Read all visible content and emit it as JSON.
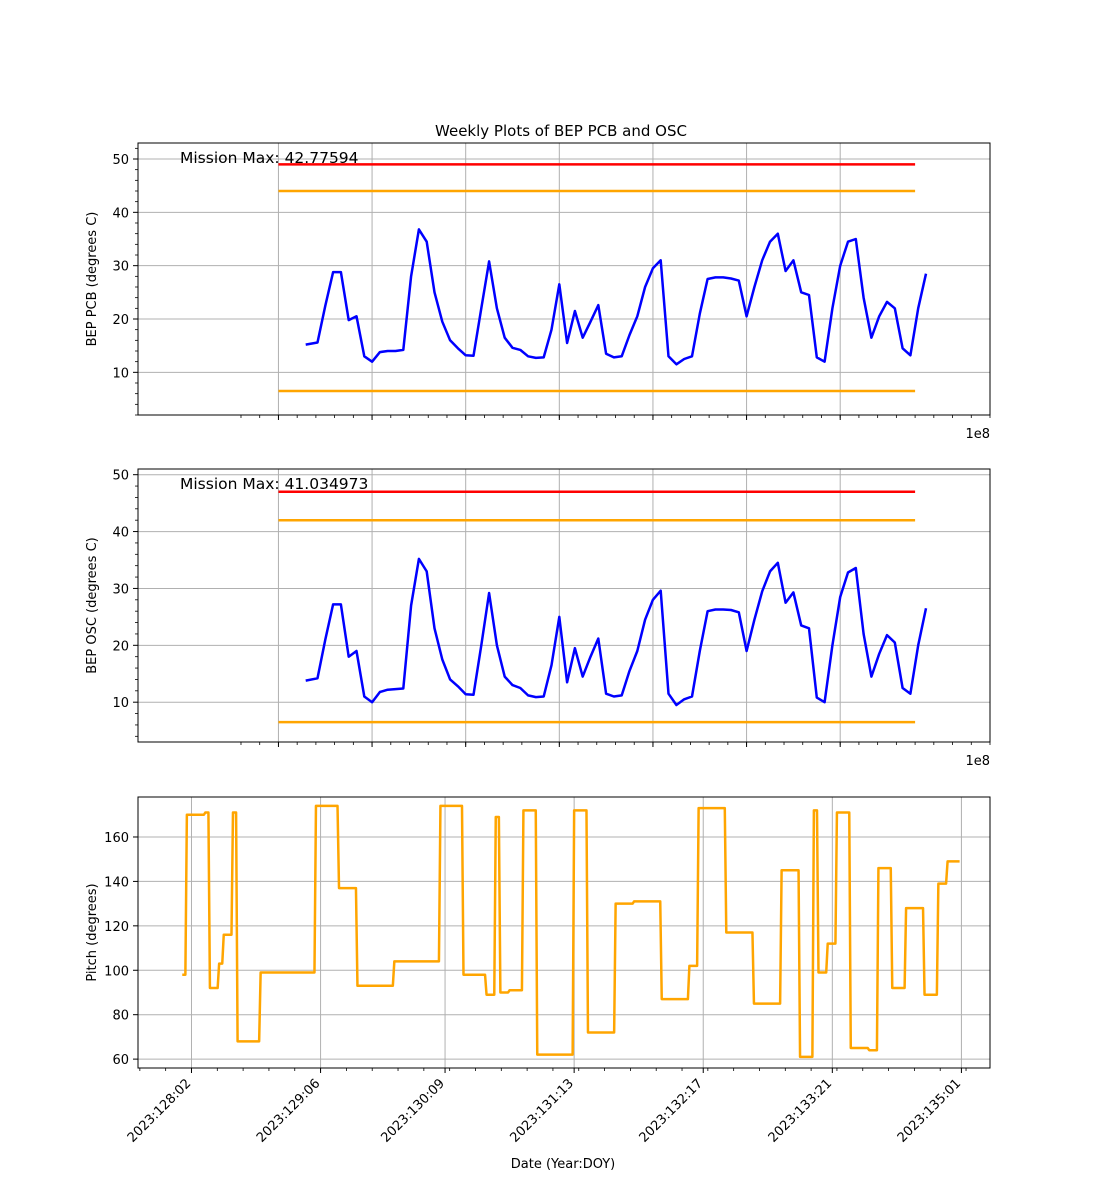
{
  "figure_title": "Weekly Plots of BEP PCB and OSC",
  "colors": {
    "data": "#0000ff",
    "red_limit": "#ff0000",
    "yellow_limit": "#ffa500",
    "pitch": "#ffa500",
    "grid": "#b0b0b0"
  },
  "chart_data": [
    {
      "type": "line",
      "ylabel": "BEP PCB (degrees C)",
      "xlabel": "",
      "offset_label": "1e8",
      "annotation": "Mission Max: 42.77594",
      "ylim": [
        2,
        53
      ],
      "yticks": [
        10,
        20,
        30,
        40,
        50
      ],
      "grid": true,
      "limits": [
        {
          "name": "red-high",
          "value": 49,
          "color": "#ff0000"
        },
        {
          "name": "yellow-high",
          "value": 44,
          "color": "#ffa500"
        },
        {
          "name": "yellow-low",
          "value": 6.5,
          "color": "#ffa500"
        }
      ],
      "series": [
        {
          "color": "#0000ff",
          "x": [
            "2023:128:07",
            "2023:128:10",
            "2023:128:12",
            "2023:128:14",
            "2023:128:16",
            "2023:128:18",
            "2023:128:20",
            "2023:128:22",
            "2023:129:00",
            "2023:129:02",
            "2023:129:04",
            "2023:129:06",
            "2023:129:08",
            "2023:129:10",
            "2023:129:12",
            "2023:129:14",
            "2023:129:16",
            "2023:129:18",
            "2023:129:20",
            "2023:129:22",
            "2023:130:00",
            "2023:130:02",
            "2023:130:04",
            "2023:130:06",
            "2023:130:08",
            "2023:130:10",
            "2023:130:12",
            "2023:130:14",
            "2023:130:16",
            "2023:130:18",
            "2023:130:20",
            "2023:130:22",
            "2023:131:00",
            "2023:131:02",
            "2023:131:04",
            "2023:131:06",
            "2023:131:08",
            "2023:131:10",
            "2023:131:12",
            "2023:131:14",
            "2023:131:16",
            "2023:131:18",
            "2023:131:20",
            "2023:131:22",
            "2023:132:00",
            "2023:132:02",
            "2023:132:04",
            "2023:132:06",
            "2023:132:08",
            "2023:132:10",
            "2023:132:12",
            "2023:132:14",
            "2023:132:16",
            "2023:132:18",
            "2023:132:20",
            "2023:132:22",
            "2023:133:00",
            "2023:133:02",
            "2023:133:04",
            "2023:133:06",
            "2023:133:08",
            "2023:133:10",
            "2023:133:12",
            "2023:133:14",
            "2023:133:16",
            "2023:133:18",
            "2023:133:20",
            "2023:133:22",
            "2023:134:00",
            "2023:134:02",
            "2023:134:04",
            "2023:134:06",
            "2023:134:08",
            "2023:134:10",
            "2023:134:12",
            "2023:134:14",
            "2023:134:16",
            "2023:134:18",
            "2023:134:20",
            "2023:134:22"
          ],
          "y": [
            15.2,
            15.6,
            22.5,
            28.8,
            28.8,
            19.8,
            20.5,
            13.0,
            12.0,
            13.8,
            14.0,
            14.0,
            14.2,
            28.0,
            36.8,
            34.5,
            25.0,
            19.5,
            16.0,
            14.5,
            13.2,
            13.1,
            22.0,
            30.8,
            22.0,
            16.5,
            14.6,
            14.2,
            13.0,
            12.7,
            12.8,
            18.0,
            26.5,
            15.5,
            21.5,
            16.5,
            19.5,
            22.6,
            13.5,
            12.8,
            13.0,
            17.0,
            20.5,
            26.0,
            29.5,
            31.0,
            13.0,
            11.5,
            12.5,
            13.0,
            21.0,
            27.5,
            27.8,
            27.8,
            27.6,
            27.2,
            20.5,
            26.0,
            31.0,
            34.5,
            36.0,
            29.0,
            31.0,
            25.0,
            24.5,
            12.8,
            12.0,
            22.0,
            30.0,
            34.5,
            35.0,
            24.0,
            16.5,
            20.5,
            23.2,
            22.0,
            14.5,
            13.2,
            22.0,
            28.5
          ]
        }
      ]
    },
    {
      "type": "line",
      "ylabel": "BEP OSC (degrees C)",
      "xlabel": "",
      "offset_label": "1e8",
      "annotation": "Mission Max: 41.034973",
      "ylim": [
        3,
        51
      ],
      "yticks": [
        10,
        20,
        30,
        40,
        50
      ],
      "grid": true,
      "limits": [
        {
          "name": "red-high",
          "value": 47,
          "color": "#ff0000"
        },
        {
          "name": "yellow-high",
          "value": 42,
          "color": "#ffa500"
        },
        {
          "name": "yellow-low",
          "value": 6.5,
          "color": "#ffa500"
        }
      ],
      "series": [
        {
          "color": "#0000ff",
          "x": [
            "2023:128:07",
            "2023:128:10",
            "2023:128:12",
            "2023:128:14",
            "2023:128:16",
            "2023:128:18",
            "2023:128:20",
            "2023:128:22",
            "2023:129:00",
            "2023:129:02",
            "2023:129:04",
            "2023:129:06",
            "2023:129:08",
            "2023:129:10",
            "2023:129:12",
            "2023:129:14",
            "2023:129:16",
            "2023:129:18",
            "2023:129:20",
            "2023:129:22",
            "2023:130:00",
            "2023:130:02",
            "2023:130:04",
            "2023:130:06",
            "2023:130:08",
            "2023:130:10",
            "2023:130:12",
            "2023:130:14",
            "2023:130:16",
            "2023:130:18",
            "2023:130:20",
            "2023:130:22",
            "2023:131:00",
            "2023:131:02",
            "2023:131:04",
            "2023:131:06",
            "2023:131:08",
            "2023:131:10",
            "2023:131:12",
            "2023:131:14",
            "2023:131:16",
            "2023:131:18",
            "2023:131:20",
            "2023:131:22",
            "2023:132:00",
            "2023:132:02",
            "2023:132:04",
            "2023:132:06",
            "2023:132:08",
            "2023:132:10",
            "2023:132:12",
            "2023:132:14",
            "2023:132:16",
            "2023:132:18",
            "2023:132:20",
            "2023:132:22",
            "2023:133:00",
            "2023:133:02",
            "2023:133:04",
            "2023:133:06",
            "2023:133:08",
            "2023:133:10",
            "2023:133:12",
            "2023:133:14",
            "2023:133:16",
            "2023:133:18",
            "2023:133:20",
            "2023:133:22",
            "2023:134:00",
            "2023:134:02",
            "2023:134:04",
            "2023:134:06",
            "2023:134:08",
            "2023:134:10",
            "2023:134:12",
            "2023:134:14",
            "2023:134:16",
            "2023:134:18",
            "2023:134:20",
            "2023:134:22"
          ],
          "y": [
            13.8,
            14.2,
            21.0,
            27.2,
            27.2,
            18.0,
            19.0,
            11.0,
            10.0,
            11.8,
            12.2,
            12.3,
            12.4,
            27.0,
            35.2,
            33.0,
            23.0,
            17.5,
            14.0,
            12.8,
            11.4,
            11.3,
            20.0,
            29.2,
            20.0,
            14.5,
            13.0,
            12.5,
            11.2,
            10.9,
            11.0,
            16.5,
            25.0,
            13.5,
            19.5,
            14.5,
            18.0,
            21.2,
            11.5,
            11.0,
            11.2,
            15.5,
            19.0,
            24.5,
            28.0,
            29.6,
            11.5,
            9.5,
            10.5,
            11.0,
            19.0,
            26.0,
            26.3,
            26.3,
            26.2,
            25.8,
            19.0,
            24.5,
            29.5,
            33.0,
            34.5,
            27.5,
            29.3,
            23.5,
            23.0,
            10.8,
            10.0,
            20.0,
            28.5,
            32.8,
            33.6,
            22.0,
            14.5,
            18.5,
            21.8,
            20.5,
            12.5,
            11.5,
            20.0,
            26.5
          ]
        }
      ]
    },
    {
      "type": "line",
      "ylabel": "Pitch (degrees)",
      "xlabel": "Date (Year:DOY)",
      "ylim": [
        56,
        178
      ],
      "yticks": [
        60,
        80,
        100,
        120,
        140,
        160
      ],
      "xticks": [
        "2023:128:02",
        "2023:129:06",
        "2023:130:09",
        "2023:131:13",
        "2023:132:17",
        "2023:133:21",
        "2023:135:01"
      ],
      "grid": true,
      "series": [
        {
          "color": "#ffa500",
          "x": [
            "2023:128:00",
            "2023:128:01",
            "2023:128:02",
            "2023:128:05",
            "2023:128:06",
            "2023:128:07",
            "2023:128:08",
            "2023:128:09",
            "2023:128:10",
            "2023:128:11",
            "2023:128:12",
            "2023:128:17",
            "2023:128:21",
            "2023:129:05",
            "2023:129:08",
            "2023:129:10",
            "2023:129:12",
            "2023:129:14",
            "2023:129:16",
            "2023:129:22",
            "2023:130:00",
            "2023:130:08",
            "2023:130:09",
            "2023:130:13",
            "2023:130:18",
            "2023:130:19",
            "2023:130:20",
            "2023:130:21",
            "2023:130:23",
            "2023:131:02",
            "2023:131:05",
            "2023:131:13",
            "2023:131:16",
            "2023:131:22",
            "2023:132:02",
            "2023:132:06",
            "2023:132:08",
            "2023:132:14",
            "2023:132:16",
            "2023:132:22",
            "2023:133:02",
            "2023:133:04",
            "2023:133:10",
            "2023:133:12",
            "2023:133:14",
            "2023:133:17",
            "2023:133:18",
            "2023:133:20",
            "2023:133:22",
            "2023:134:01",
            "2023:134:05",
            "2023:134:07",
            "2023:134:10",
            "2023:134:13",
            "2023:134:17",
            "2023:134:20",
            "2023:134:22"
          ],
          "y": [
            98,
            170,
            170,
            171,
            92,
            92,
            103,
            116,
            116,
            171,
            68,
            99,
            99,
            174,
            174,
            137,
            137,
            93,
            93,
            104,
            104,
            174,
            174,
            98,
            89,
            89,
            169,
            90,
            91,
            172,
            62,
            172,
            72,
            130,
            131,
            131,
            87,
            102,
            173,
            117,
            117,
            85,
            145,
            145,
            61,
            172,
            99,
            112,
            171,
            65,
            64,
            146,
            92,
            128,
            89,
            139,
            149
          ]
        }
      ]
    }
  ]
}
